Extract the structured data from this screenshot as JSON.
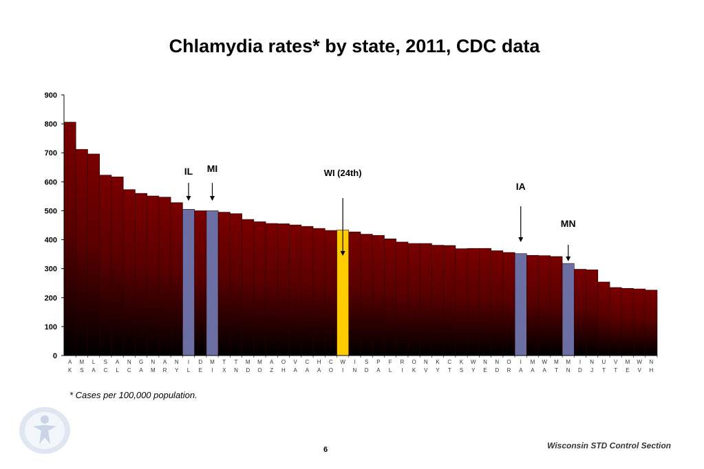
{
  "slide": {
    "title": "Chlamydia rates* by state, 2011, CDC data",
    "footnote": "* Cases per 100,000 population.",
    "footer": "Wisconsin STD Control Section",
    "page_number": "6"
  },
  "colors": {
    "bar_top": "#7a0000",
    "bar_bottom": "#000000",
    "highlight_neighbor": "#6b6fa3",
    "highlight_wi": "#ffcc00"
  },
  "chart_data": {
    "type": "bar",
    "title": "",
    "xlabel": "",
    "ylabel": "",
    "ylim": [
      0,
      900
    ],
    "yticks": [
      0,
      100,
      200,
      300,
      400,
      500,
      600,
      700,
      800,
      900
    ],
    "grid": false,
    "categories": [
      "AK",
      "MS",
      "LA",
      "SC",
      "AL",
      "NC",
      "GA",
      "NM",
      "AR",
      "NY",
      "IL",
      "DE",
      "MI",
      "TX",
      "TN",
      "MD",
      "MO",
      "AZ",
      "OH",
      "VA",
      "CA",
      "HA",
      "CO",
      "WI",
      "IN",
      "SD",
      "PA",
      "FL",
      "RI",
      "OK",
      "NV",
      "KY",
      "CT",
      "KS",
      "WY",
      "NE",
      "ND",
      "OR",
      "IA",
      "MA",
      "WA",
      "MT",
      "MN",
      "ID",
      "NJ",
      "UT",
      "VT",
      "ME",
      "WV",
      "NH"
    ],
    "values": [
      806,
      712,
      696,
      623,
      617,
      573,
      560,
      551,
      547,
      528,
      505,
      500,
      500,
      495,
      490,
      470,
      462,
      456,
      455,
      451,
      446,
      439,
      432,
      433,
      427,
      419,
      415,
      403,
      392,
      387,
      387,
      381,
      380,
      369,
      370,
      370,
      362,
      356,
      352,
      346,
      345,
      342,
      318,
      298,
      296,
      254,
      235,
      232,
      230,
      226
    ],
    "highlights": {
      "IL": "neighbor",
      "MI": "neighbor",
      "WI": "wi",
      "IA": "neighbor",
      "MN": "neighbor"
    },
    "annotations": [
      {
        "label": "IL",
        "state": "IL"
      },
      {
        "label": "MI",
        "state": "MI"
      },
      {
        "label": "WI (24th)",
        "state": "WI"
      },
      {
        "label": "IA",
        "state": "IA"
      },
      {
        "label": "MN",
        "state": "MN"
      }
    ]
  }
}
